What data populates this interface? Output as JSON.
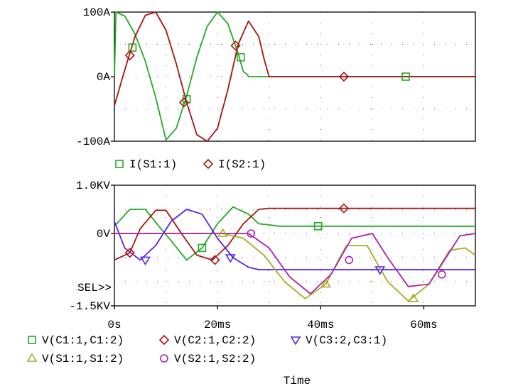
{
  "chart_data": [
    {
      "type": "line",
      "panel": "top",
      "xlim": [
        0,
        70
      ],
      "ylim": [
        -100,
        100
      ],
      "ytick_labels": [
        "100A",
        "0A",
        "-100A"
      ],
      "ytick_values": [
        100,
        0,
        -100
      ],
      "grid": "dotted",
      "series": [
        {
          "name": "I(S1:1)",
          "color": "#22aa22",
          "marker": "square",
          "x": [
            0,
            0.3,
            2,
            4,
            6,
            8,
            10,
            12,
            14,
            16,
            18,
            20,
            22,
            24,
            25,
            25.8,
            26,
            70
          ],
          "y": [
            0,
            100,
            94,
            66,
            24,
            -32,
            -98,
            -80,
            -30,
            30,
            78,
            100,
            82,
            36,
            8,
            3,
            0,
            0
          ]
        },
        {
          "name": "I(S2:1)",
          "color": "#aa1111",
          "marker": "diamond",
          "x": [
            0,
            2,
            4,
            6,
            8,
            10,
            12,
            14,
            16,
            18,
            20,
            22,
            24,
            26,
            28,
            29,
            30,
            70
          ],
          "y": [
            -45,
            10,
            62,
            95,
            100,
            72,
            20,
            -40,
            -90,
            -100,
            -80,
            -20,
            50,
            86,
            62,
            28,
            0,
            0
          ]
        }
      ],
      "markers": [
        {
          "series": 0,
          "x": [
            3.5,
            14,
            24.5,
            56.5
          ],
          "y": [
            45,
            -35,
            30,
            0
          ]
        },
        {
          "series": 1,
          "x": [
            3,
            13.5,
            23.5,
            44.5
          ],
          "y": [
            33,
            -40,
            48,
            0
          ]
        }
      ],
      "legend": [
        {
          "label": "I(S1:1)",
          "marker": "square",
          "color": "#22aa22"
        },
        {
          "label": "I(S2:1)",
          "marker": "diamond",
          "color": "#aa1111"
        }
      ]
    },
    {
      "type": "line",
      "panel": "bottom",
      "xlim": [
        0,
        70
      ],
      "ylim": [
        -1.5,
        1.0
      ],
      "ytick_labels": [
        "1.0KV",
        "0V",
        "-1.5KV"
      ],
      "ytick_values": [
        1.0,
        0,
        -1.5
      ],
      "xtick_labels": [
        "0s",
        "20ms",
        "40ms",
        "60ms"
      ],
      "xtick_values": [
        0,
        20,
        40,
        60
      ],
      "xlabel": "Time",
      "sel_label": "SEL>>",
      "grid": "dotted",
      "series": [
        {
          "name": "V(C1:1,C1:2)",
          "color": "#22aa22",
          "marker": "square",
          "x": [
            0,
            3,
            6,
            9,
            11,
            14,
            17,
            20,
            23,
            26,
            28,
            30,
            32,
            70
          ],
          "y": [
            0.15,
            0.5,
            0.5,
            0.1,
            -0.15,
            -0.55,
            -0.3,
            0.2,
            0.55,
            0.4,
            0.2,
            0.18,
            0.15,
            0.15
          ]
        },
        {
          "name": "V(C2:1,C2:2)",
          "color": "#aa1111",
          "marker": "diamond",
          "x": [
            0,
            3,
            5,
            8,
            10,
            13,
            16,
            19,
            22,
            25,
            28,
            30,
            70
          ],
          "y": [
            -0.55,
            -0.4,
            0.1,
            0.48,
            0.48,
            0.0,
            -0.45,
            -0.55,
            -0.25,
            0.2,
            0.5,
            0.52,
            0.52
          ]
        },
        {
          "name": "V(C3:2,C3:1)",
          "color": "#5522ee",
          "marker": "triangle-down",
          "x": [
            0,
            2,
            5,
            8,
            11,
            14,
            17,
            20,
            23,
            26,
            28,
            30,
            70
          ],
          "y": [
            0.25,
            -0.3,
            -0.55,
            -0.25,
            0.25,
            0.5,
            0.4,
            -0.1,
            -0.5,
            -0.7,
            -0.75,
            -0.75,
            -0.75
          ]
        },
        {
          "name": "V(S1:1,S1:2)",
          "color": "#aaaa22",
          "marker": "triangle-up",
          "x": [
            0,
            21,
            25,
            29,
            33,
            37,
            41,
            45,
            49,
            53,
            57,
            61,
            65,
            68,
            70
          ],
          "y": [
            0,
            0,
            -0.1,
            -0.45,
            -1.0,
            -1.35,
            -1.05,
            -0.25,
            -0.25,
            -1.0,
            -1.4,
            -1.05,
            -0.35,
            -0.3,
            -0.45
          ]
        },
        {
          "name": "V(S2:1,S2:2)",
          "color": "#aa22aa",
          "marker": "circle",
          "x": [
            0,
            26,
            30,
            34,
            38,
            42,
            46,
            50,
            53,
            57,
            61,
            64,
            67,
            70
          ],
          "y": [
            0,
            0,
            -0.3,
            -0.9,
            -1.25,
            -0.85,
            -0.1,
            0.0,
            -0.5,
            -1.1,
            -1.05,
            -0.55,
            -0.05,
            0.0
          ]
        }
      ],
      "markers": [
        {
          "series": 0,
          "x": [
            17,
            39.5
          ],
          "y": [
            -0.3,
            0.15
          ]
        },
        {
          "series": 1,
          "x": [
            3,
            19.5,
            44.5
          ],
          "y": [
            -0.4,
            -0.55,
            0.52
          ]
        },
        {
          "series": 2,
          "x": [
            6,
            22.5,
            51.5
          ],
          "y": [
            -0.55,
            -0.5,
            -0.75
          ]
        },
        {
          "series": 3,
          "x": [
            21,
            41,
            58
          ],
          "y": [
            0,
            -1.05,
            -1.35
          ]
        },
        {
          "series": 4,
          "x": [
            26.5,
            45.5,
            63.5
          ],
          "y": [
            0,
            -0.55,
            -0.85
          ]
        }
      ],
      "legend": [
        {
          "label": "V(C1:1,C1:2)",
          "marker": "square",
          "color": "#22aa22"
        },
        {
          "label": "V(C2:1,C2:2)",
          "marker": "diamond",
          "color": "#aa1111"
        },
        {
          "label": "V(C3:2,C3:1)",
          "marker": "triangle-down",
          "color": "#5522ee"
        },
        {
          "label": "V(S1:1,S1:2)",
          "marker": "triangle-up",
          "color": "#aaaa22"
        },
        {
          "label": "V(S2:1,S2:2)",
          "marker": "circle",
          "color": "#aa22aa"
        }
      ]
    }
  ]
}
